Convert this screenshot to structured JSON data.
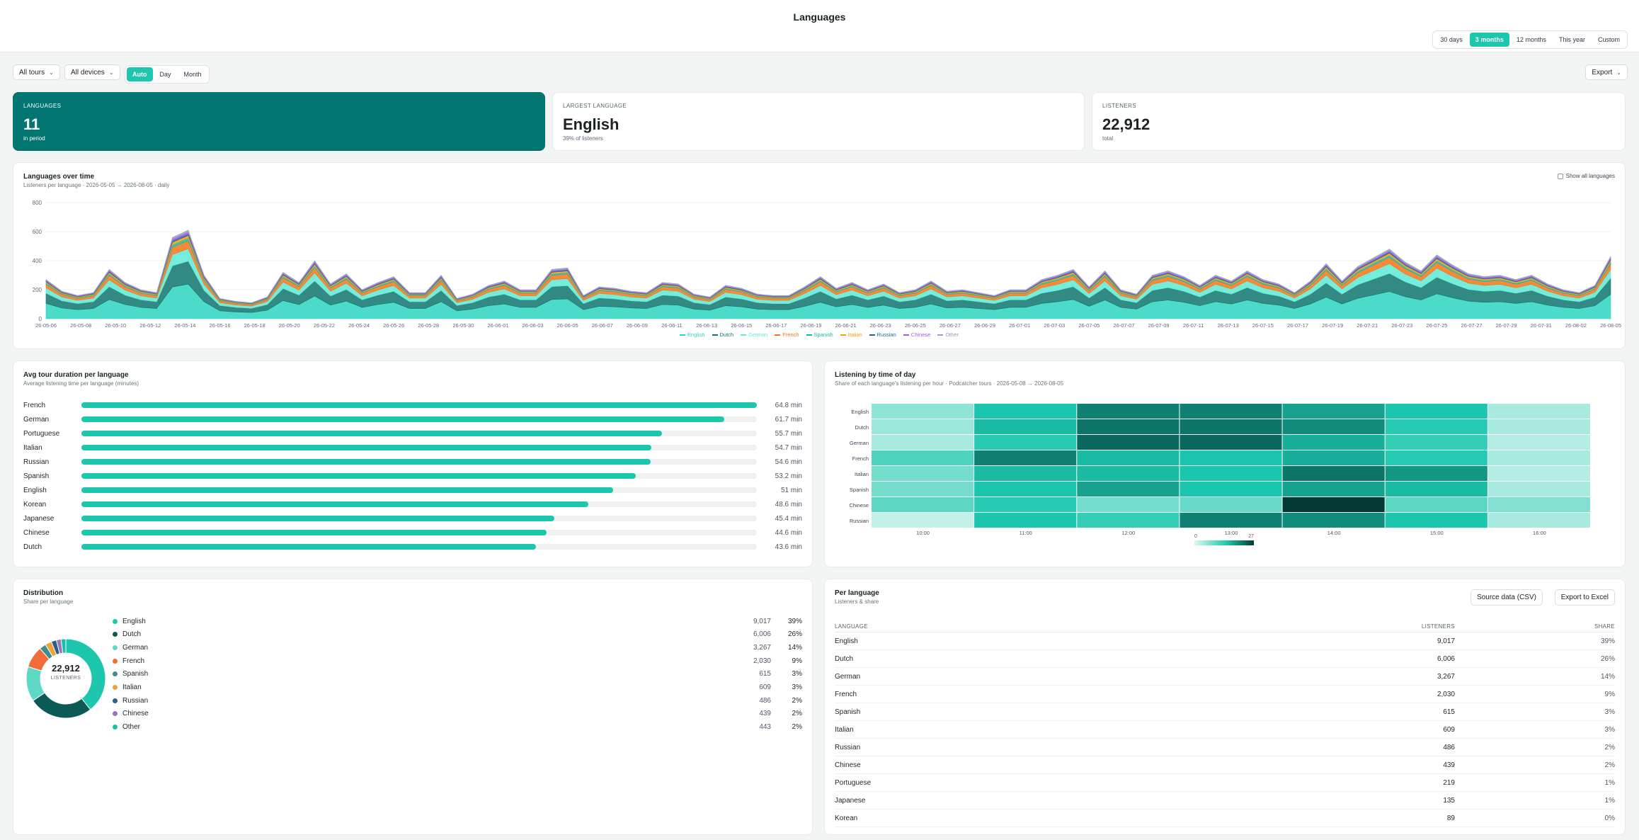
{
  "page": {
    "title": "Languages"
  },
  "range_options": [
    "30 days",
    "3 months",
    "12 months",
    "This year",
    "Custom"
  ],
  "range_active": 1,
  "filters": {
    "tours": "All tours",
    "devices": "All devices"
  },
  "granularity_options": [
    "Auto",
    "Day",
    "Month"
  ],
  "granularity_active": 0,
  "export_label": "Export",
  "kpis": [
    {
      "label": "LANGUAGES",
      "value": "11",
      "sub": "in period"
    },
    {
      "label": "LARGEST LANGUAGE",
      "value": "English",
      "sub": "39% of listeners"
    },
    {
      "label": "LISTENERS",
      "value": "22,912",
      "sub": "total"
    }
  ],
  "area_chart": {
    "title": "Languages over time",
    "subtitle": "Listeners per language · 2026-05-05 → 2026-08-05 · daily",
    "show_all_label": "Show all languages",
    "chart_data": {
      "type": "area",
      "stacked": true,
      "y_ticks": [
        0,
        200,
        400,
        600,
        800
      ],
      "ylim": [
        0,
        800
      ],
      "x_ticks": [
        "26-05-06",
        "26-05-08",
        "26-05-10",
        "26-05-12",
        "26-05-14",
        "26-05-16",
        "26-05-18",
        "26-05-20",
        "26-05-22",
        "26-05-24",
        "26-05-26",
        "26-05-28",
        "26-05-30",
        "26-06-01",
        "26-06-03",
        "26-06-05",
        "26-06-07",
        "26-06-09",
        "26-06-11",
        "26-06-13",
        "26-06-15",
        "26-06-17",
        "26-06-19",
        "26-06-21",
        "26-06-23",
        "26-06-25",
        "26-06-27",
        "26-06-29",
        "26-07-01",
        "26-07-03",
        "26-07-05",
        "26-07-07",
        "26-07-09",
        "26-07-11",
        "26-07-13",
        "26-07-15",
        "26-07-17",
        "26-07-19",
        "26-07-21",
        "26-07-23",
        "26-07-25",
        "26-07-27",
        "26-07-29",
        "26-07-31",
        "26-08-02",
        "26-08-05"
      ],
      "totals": [
        270,
        190,
        160,
        180,
        340,
        250,
        200,
        180,
        560,
        610,
        300,
        140,
        120,
        110,
        150,
        320,
        250,
        400,
        240,
        310,
        200,
        250,
        290,
        180,
        180,
        300,
        140,
        170,
        230,
        260,
        200,
        200,
        340,
        350,
        160,
        220,
        210,
        190,
        180,
        250,
        240,
        170,
        150,
        230,
        210,
        170,
        160,
        160,
        220,
        290,
        210,
        250,
        200,
        240,
        180,
        200,
        260,
        190,
        200,
        180,
        160,
        200,
        200,
        270,
        300,
        340,
        220,
        330,
        200,
        170,
        300,
        330,
        290,
        230,
        300,
        260,
        330,
        270,
        240,
        180,
        260,
        380,
        260,
        360,
        420,
        480,
        390,
        330,
        440,
        370,
        310,
        290,
        300,
        270,
        300,
        240,
        200,
        180,
        230,
        430
      ],
      "series": [
        {
          "name": "English",
          "color": "#2dd4bf",
          "share": 0.39
        },
        {
          "name": "Dutch",
          "color": "#0f766e",
          "share": 0.26
        },
        {
          "name": "German",
          "color": "#5eead4",
          "share": 0.14
        },
        {
          "name": "French",
          "color": "#f97316",
          "share": 0.09
        },
        {
          "name": "Spanish",
          "color": "#14b8a6",
          "share": 0.03
        },
        {
          "name": "Italian",
          "color": "#f59e0b",
          "share": 0.03
        },
        {
          "name": "Russian",
          "color": "#1e6a8d",
          "share": 0.02
        },
        {
          "name": "Chinese",
          "color": "#a855f7",
          "share": 0.02
        },
        {
          "name": "Other",
          "color": "#94a3b8",
          "share": 0.02
        }
      ]
    }
  },
  "duration": {
    "title": "Avg tour duration per language",
    "subtitle": "Average listening time per language (minutes)",
    "chart_data": {
      "type": "bar",
      "max": 64.8,
      "rows": [
        {
          "label": "French",
          "value": 64.8,
          "display": "64.8 min"
        },
        {
          "label": "German",
          "value": 61.7,
          "display": "61.7 min"
        },
        {
          "label": "Portuguese",
          "value": 55.7,
          "display": "55.7 min"
        },
        {
          "label": "Italian",
          "value": 54.7,
          "display": "54.7 min"
        },
        {
          "label": "Russian",
          "value": 54.6,
          "display": "54.6 min"
        },
        {
          "label": "Spanish",
          "value": 53.2,
          "display": "53.2 min"
        },
        {
          "label": "English",
          "value": 51,
          "display": "51 min"
        },
        {
          "label": "Korean",
          "value": 48.6,
          "display": "48.6 min"
        },
        {
          "label": "Japanese",
          "value": 45.4,
          "display": "45.4 min"
        },
        {
          "label": "Chinese",
          "value": 44.6,
          "display": "44.6 min"
        },
        {
          "label": "Dutch",
          "value": 43.6,
          "display": "43.6 min"
        }
      ]
    }
  },
  "heatmap": {
    "title": "Listening by time of day",
    "subtitle": "Share of each language's listening per hour · Podcatcher tours · 2026-05-08 → 2026-08-05",
    "chart_data": {
      "type": "heatmap",
      "rows": [
        "English",
        "Dutch",
        "German",
        "French",
        "Italian",
        "Spanish",
        "Chinese",
        "Russian"
      ],
      "cols": [
        "10:00",
        "11:00",
        "12:00",
        "13:00",
        "14:00",
        "15:00",
        "16:00"
      ],
      "values": [
        [
          6,
          15,
          21,
          21,
          18,
          15,
          4
        ],
        [
          5,
          16,
          22,
          22,
          20,
          14,
          4
        ],
        [
          4,
          14,
          23,
          23,
          17,
          13,
          3
        ],
        [
          11,
          21,
          16,
          15,
          17,
          14,
          4
        ],
        [
          8,
          16,
          16,
          15,
          22,
          19,
          3
        ],
        [
          8,
          15,
          18,
          15,
          18,
          16,
          4
        ],
        [
          10,
          14,
          8,
          9,
          27,
          10,
          7
        ],
        [
          2,
          15,
          13,
          21,
          20,
          15,
          4
        ]
      ],
      "scale_min": "0",
      "scale_max": "27"
    }
  },
  "distribution": {
    "title": "Distribution",
    "subtitle": "Share per language",
    "center_value": "22,912",
    "center_label": "LISTENERS",
    "chart_data": {
      "type": "pie",
      "items": [
        {
          "name": "English",
          "count": "9,017",
          "pct": "39%",
          "value": 9017,
          "color": "#1cc7ae"
        },
        {
          "name": "Dutch",
          "count": "6,006",
          "pct": "26%",
          "value": 6006,
          "color": "#0c5a56"
        },
        {
          "name": "German",
          "count": "3,267",
          "pct": "14%",
          "value": 3267,
          "color": "#5fd9c6"
        },
        {
          "name": "French",
          "count": "2,030",
          "pct": "9%",
          "value": 2030,
          "color": "#f26b3a"
        },
        {
          "name": "Spanish",
          "count": "615",
          "pct": "3%",
          "value": 615,
          "color": "#3c8f8a"
        },
        {
          "name": "Italian",
          "count": "609",
          "pct": "3%",
          "value": 609,
          "color": "#e9a53b"
        },
        {
          "name": "Russian",
          "count": "486",
          "pct": "2%",
          "value": 486,
          "color": "#2d5f86"
        },
        {
          "name": "Chinese",
          "count": "439",
          "pct": "2%",
          "value": 439,
          "color": "#9b72c0"
        },
        {
          "name": "Other",
          "count": "443",
          "pct": "2%",
          "value": 443,
          "color": "#19bfa8"
        }
      ]
    }
  },
  "per_language": {
    "title": "Per language",
    "subtitle": "Listeners & share",
    "btn_csv": "Source data (CSV)",
    "btn_excel": "Export to Excel",
    "headers": [
      "LANGUAGE",
      "LISTENERS",
      "SHARE"
    ],
    "rows": [
      [
        "English",
        "9,017",
        "39%"
      ],
      [
        "Dutch",
        "6,006",
        "26%"
      ],
      [
        "German",
        "3,267",
        "14%"
      ],
      [
        "French",
        "2,030",
        "9%"
      ],
      [
        "Spanish",
        "615",
        "3%"
      ],
      [
        "Italian",
        "609",
        "3%"
      ],
      [
        "Russian",
        "486",
        "2%"
      ],
      [
        "Chinese",
        "439",
        "2%"
      ],
      [
        "Portuguese",
        "219",
        "1%"
      ],
      [
        "Japanese",
        "135",
        "1%"
      ],
      [
        "Korean",
        "89",
        "0%"
      ]
    ]
  }
}
